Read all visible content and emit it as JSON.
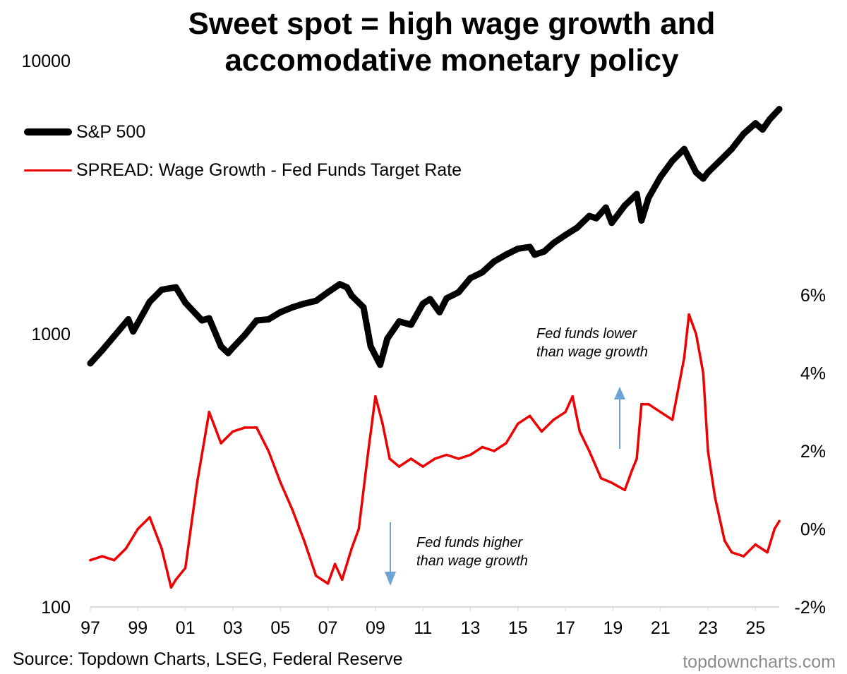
{
  "title": {
    "line1": "Sweet spot = high wage growth and",
    "line2": "accomodative monetary policy"
  },
  "colors": {
    "sp500": "#000000",
    "spread": "#ee0000",
    "arrow": "#6fa3d6",
    "axis": "#d9d9d9",
    "watermark": "#8c8c8c"
  },
  "chart_data": {
    "type": "line",
    "title": "Sweet spot = high wage growth and accomodative monetary policy",
    "x_tick_labels": [
      "97",
      "99",
      "01",
      "03",
      "05",
      "07",
      "09",
      "11",
      "13",
      "15",
      "17",
      "19",
      "21",
      "23",
      "25"
    ],
    "x_range": [
      1997,
      2026
    ],
    "left_axis": {
      "scale": "log",
      "range": [
        100,
        10000
      ],
      "tick_labels": [
        "10000",
        "1000",
        "100"
      ],
      "ticks": [
        10000,
        1000,
        100
      ]
    },
    "right_axis": {
      "scale": "linear",
      "range": [
        -2,
        6
      ],
      "tick_labels": [
        "6%",
        "4%",
        "2%",
        "0%",
        "-2%"
      ],
      "ticks": [
        6,
        4,
        2,
        0,
        -2
      ]
    },
    "legend": [
      "S&P 500",
      "SPREAD: Wage Growth - Fed Funds Target Rate"
    ],
    "series": [
      {
        "name": "S&P 500",
        "axis": "left",
        "x": [
          1997.0,
          1997.5,
          1998.0,
          1998.6,
          1998.8,
          1999.5,
          2000.0,
          2000.6,
          2001.0,
          2001.7,
          2002.0,
          2002.5,
          2002.8,
          2003.0,
          2003.5,
          2004.0,
          2004.5,
          2005.0,
          2005.5,
          2006.0,
          2006.5,
          2007.0,
          2007.5,
          2007.8,
          2008.0,
          2008.5,
          2008.8,
          2009.2,
          2009.5,
          2010.0,
          2010.5,
          2011.0,
          2011.3,
          2011.7,
          2012.0,
          2012.5,
          2013.0,
          2013.5,
          2014.0,
          2014.5,
          2015.0,
          2015.5,
          2015.7,
          2016.1,
          2016.5,
          2017.0,
          2017.5,
          2018.0,
          2018.3,
          2018.7,
          2018.95,
          2019.5,
          2020.0,
          2020.2,
          2020.5,
          2021.0,
          2021.5,
          2022.0,
          2022.5,
          2022.8,
          2023.0,
          2023.5,
          2024.0,
          2024.5,
          2025.0,
          2025.3,
          2025.6,
          2026.0
        ],
        "values": [
          780,
          870,
          980,
          1130,
          1020,
          1310,
          1450,
          1480,
          1300,
          1120,
          1140,
          900,
          850,
          890,
          990,
          1120,
          1130,
          1200,
          1250,
          1290,
          1320,
          1420,
          1520,
          1480,
          1380,
          1250,
          900,
          770,
          960,
          1110,
          1080,
          1290,
          1340,
          1200,
          1350,
          1420,
          1600,
          1680,
          1840,
          1950,
          2050,
          2080,
          1950,
          2000,
          2150,
          2300,
          2450,
          2700,
          2650,
          2900,
          2550,
          2950,
          3250,
          2600,
          3150,
          3750,
          4300,
          4750,
          3900,
          3700,
          3900,
          4300,
          4750,
          5400,
          5900,
          5600,
          6100,
          6650
        ]
      },
      {
        "name": "SPREAD: Wage Growth - Fed Funds Target Rate",
        "axis": "right",
        "x": [
          1997.0,
          1997.5,
          1998.0,
          1998.5,
          1999.0,
          1999.5,
          2000.0,
          2000.4,
          2000.6,
          2001.0,
          2001.5,
          2002.0,
          2002.5,
          2003.0,
          2003.5,
          2004.0,
          2004.5,
          2005.0,
          2005.5,
          2006.0,
          2006.5,
          2007.0,
          2007.3,
          2007.6,
          2008.0,
          2008.3,
          2008.7,
          2009.0,
          2009.3,
          2009.6,
          2010.0,
          2010.5,
          2011.0,
          2011.5,
          2012.0,
          2012.5,
          2013.0,
          2013.5,
          2014.0,
          2014.5,
          2015.0,
          2015.5,
          2016.0,
          2016.5,
          2017.0,
          2017.3,
          2017.6,
          2018.0,
          2018.5,
          2018.9,
          2019.5,
          2019.8,
          2020.0,
          2020.2,
          2020.5,
          2021.0,
          2021.5,
          2022.0,
          2022.2,
          2022.5,
          2022.8,
          2023.0,
          2023.3,
          2023.7,
          2024.0,
          2024.5,
          2025.0,
          2025.5,
          2025.8,
          2026.0
        ],
        "values": [
          -0.8,
          -0.7,
          -0.8,
          -0.5,
          0.0,
          0.3,
          -0.5,
          -1.5,
          -1.3,
          -1.0,
          1.2,
          3.0,
          2.2,
          2.5,
          2.6,
          2.6,
          2.0,
          1.2,
          0.5,
          -0.3,
          -1.2,
          -1.4,
          -0.9,
          -1.3,
          -0.5,
          0.0,
          2.0,
          3.4,
          2.7,
          1.8,
          1.6,
          1.8,
          1.6,
          1.8,
          1.9,
          1.8,
          1.9,
          2.1,
          2.0,
          2.2,
          2.7,
          2.9,
          2.5,
          2.8,
          3.0,
          3.4,
          2.5,
          2.0,
          1.3,
          1.2,
          1.0,
          1.5,
          1.8,
          3.2,
          3.2,
          3.0,
          2.8,
          4.4,
          5.5,
          5.0,
          4.0,
          2.0,
          0.8,
          -0.3,
          -0.6,
          -0.7,
          -0.4,
          -0.6,
          0.0,
          0.2
        ]
      }
    ],
    "annotations": [
      {
        "lines": [
          "Fed funds lower",
          "than wage growth"
        ],
        "arrow": "up"
      },
      {
        "lines": [
          "Fed funds higher",
          "than wage growth"
        ],
        "arrow": "down"
      }
    ],
    "ylabel": "",
    "xlabel": ""
  },
  "legend": {
    "sp500": "S&P 500",
    "spread": "SPREAD: Wage Growth - Fed Funds Target Rate"
  },
  "annotations": {
    "upper": {
      "line1": "Fed funds lower",
      "line2": "than wage growth"
    },
    "lower": {
      "line1": "Fed funds higher",
      "line2": "than wage growth"
    }
  },
  "footer": {
    "source": "Source: Topdown Charts, LSEG, Federal Reserve",
    "watermark": "topdowncharts.com"
  }
}
